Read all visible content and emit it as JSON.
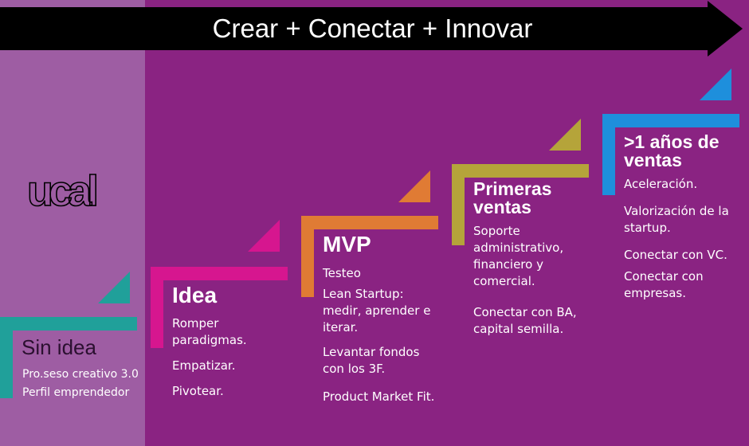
{
  "banner": {
    "title": "Crear + Conectar + Innovar"
  },
  "logo": {
    "text": "ucal"
  },
  "steps": [
    {
      "title": "Sin idea",
      "color": "#20a09a",
      "items": [
        "Pro.seso creativo 3.0",
        "Perfil emprendedor"
      ]
    },
    {
      "title": "Idea",
      "color": "#d6168f",
      "items": [
        "Romper paradigmas.",
        "Empatizar.",
        "Pivotear."
      ]
    },
    {
      "title": "MVP",
      "color": "#e07b34",
      "items": [
        "Testeo",
        "Lean Startup: medir, aprender e iterar.",
        "Levantar fondos con los 3F.",
        "Product Market Fit."
      ]
    },
    {
      "title": "Primeras ventas",
      "color": "#b5a43a",
      "items": [
        "Soporte administrativo, financiero y comercial.",
        "Conectar con BA, capital semilla."
      ]
    },
    {
      "title": ">1 años de ventas",
      "color": "#1e8fdc",
      "items": [
        "Aceleración.",
        "Valorización de la startup.",
        "Conectar con VC.",
        "Conectar con empresas."
      ]
    }
  ]
}
